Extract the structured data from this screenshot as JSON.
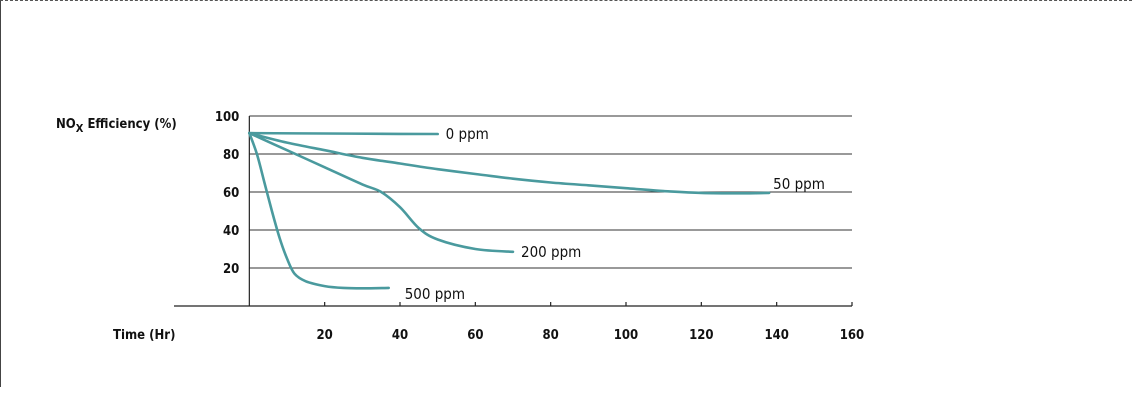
{
  "chart_data": {
    "type": "line",
    "ylabel": {
      "main": "NO",
      "sub": "X",
      "rest": " Efficiency (%)"
    },
    "xlabel": "Time (Hr)",
    "xlim": [
      -20,
      160
    ],
    "ylim": [
      0,
      100
    ],
    "x_ticks": [
      20,
      40,
      60,
      80,
      100,
      120,
      140,
      160
    ],
    "x_tick_labels": [
      "20",
      "40",
      "60",
      "80",
      "100",
      "120",
      "140",
      "160"
    ],
    "y_ticks": [
      20,
      40,
      60,
      80,
      100
    ],
    "y_tick_labels": [
      "20",
      "40",
      "60",
      "80",
      "100"
    ],
    "grid": "horizontal",
    "colors": {
      "line": "#4a9a9e",
      "grid": "#333333",
      "axis": "#222222"
    },
    "series": [
      {
        "name": "0 ppm",
        "points": [
          [
            0,
            91
          ],
          [
            20,
            90.8
          ],
          [
            40,
            90.6
          ],
          [
            50,
            90.5
          ]
        ]
      },
      {
        "name": "50 ppm",
        "points": [
          [
            0,
            91
          ],
          [
            10,
            86
          ],
          [
            20,
            82
          ],
          [
            30,
            78
          ],
          [
            40,
            75
          ],
          [
            50,
            72
          ],
          [
            60,
            69.5
          ],
          [
            70,
            67
          ],
          [
            80,
            65
          ],
          [
            90,
            63.5
          ],
          [
            100,
            62
          ],
          [
            110,
            60.5
          ],
          [
            120,
            59.5
          ],
          [
            130,
            59.3
          ],
          [
            138,
            59.5
          ]
        ]
      },
      {
        "name": "200 ppm",
        "points": [
          [
            0,
            91
          ],
          [
            10,
            82
          ],
          [
            20,
            73
          ],
          [
            30,
            64
          ],
          [
            35,
            60
          ],
          [
            40,
            52
          ],
          [
            45,
            41
          ],
          [
            50,
            35
          ],
          [
            60,
            30
          ],
          [
            70,
            28.5
          ]
        ]
      },
      {
        "name": "500 ppm",
        "points": [
          [
            0,
            91
          ],
          [
            2,
            80
          ],
          [
            4,
            65
          ],
          [
            6,
            50
          ],
          [
            8,
            36
          ],
          [
            10,
            25
          ],
          [
            12,
            17
          ],
          [
            15,
            13
          ],
          [
            20,
            10.5
          ],
          [
            25,
            9.5
          ],
          [
            30,
            9.3
          ],
          [
            37,
            9.5
          ]
        ]
      }
    ]
  }
}
